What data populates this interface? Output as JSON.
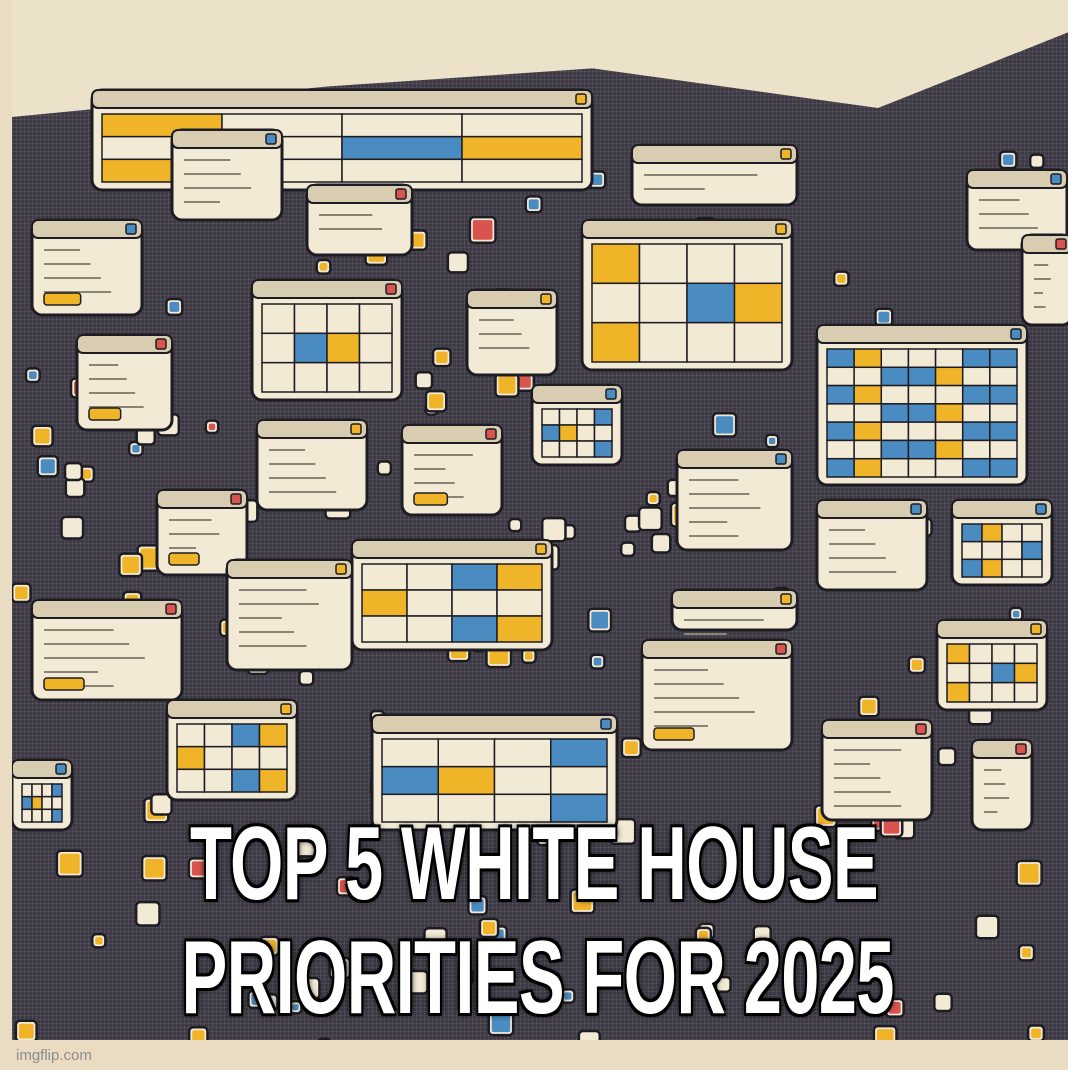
{
  "meme": {
    "line1": "TOP 5 WHITE HOUSE",
    "line2": "PRIORITIES FOR 2025"
  },
  "watermark": "imgflip.com",
  "colors": {
    "background": "#e9dcc2",
    "dashboard_base": "#3d3a45",
    "window_fill": "#f3ead6",
    "accent_yellow": "#f0b429",
    "accent_blue": "#4a8cc2",
    "accent_red": "#d9534f",
    "caption_text": "#ffffff"
  },
  "illustration": "cluttered-collage-of-application-windows"
}
